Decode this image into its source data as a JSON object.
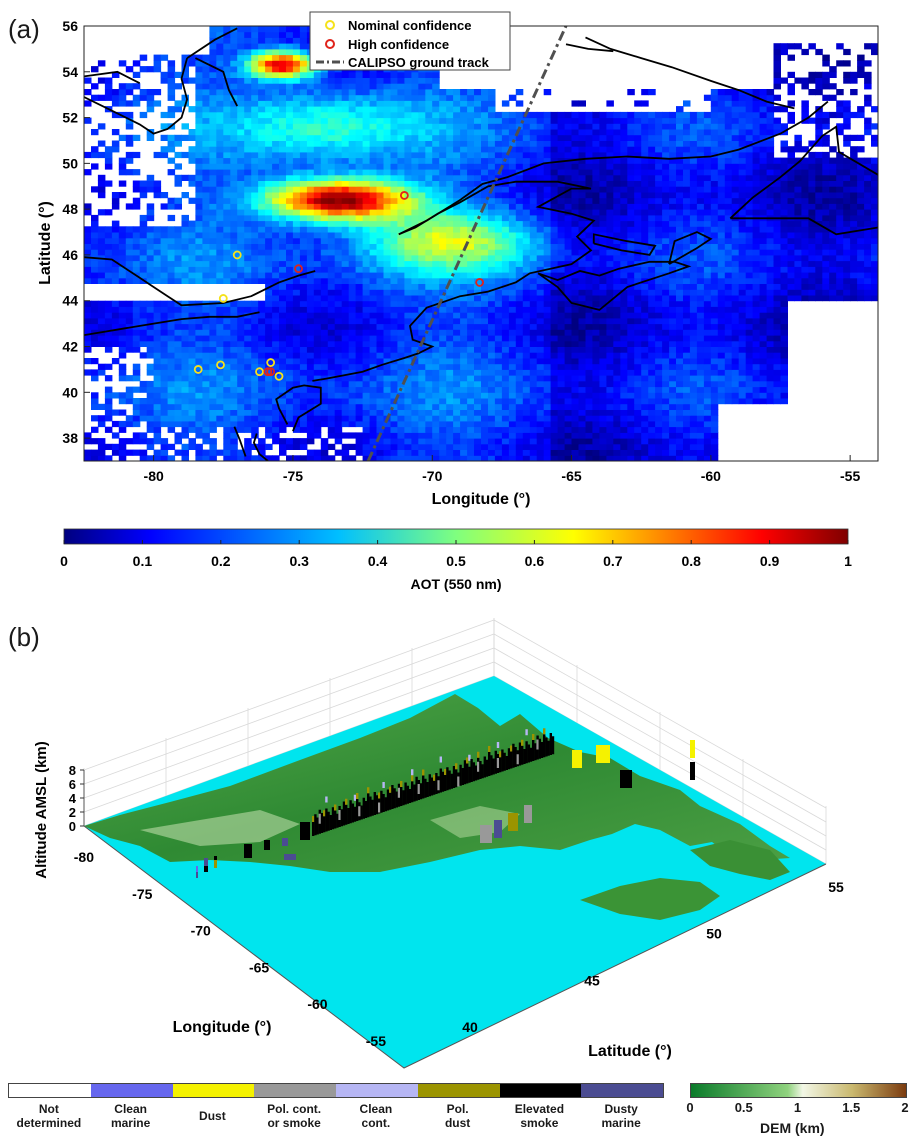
{
  "panel_a": {
    "label": "(a)",
    "legend": {
      "nominal": "Nominal confidence",
      "high": "High confidence",
      "track": "CALIPSO ground track"
    },
    "colors": {
      "nominal": "#f5e21a",
      "high": "#e0231b",
      "track": "#505050",
      "coast": "#000000"
    }
  },
  "panel_b": {
    "label": "(b)",
    "z_axis_label": "Altitude AMSL (km)",
    "x_axis_label": "Longitude (°)",
    "y_axis_label": "Latitude (°)",
    "z_ticks": [
      "8",
      "6",
      "4",
      "2",
      "0"
    ],
    "lon_ticks": [
      "-80",
      "-75",
      "-70",
      "-65",
      "-60",
      "-55"
    ],
    "lat_ticks": [
      "40",
      "45",
      "50",
      "55"
    ],
    "colors": {
      "ocean": "#00e5ee",
      "land": "#3f9a3a"
    }
  },
  "aerosol_legend": {
    "classes": [
      {
        "label": "Not\ndetermined",
        "color": "#ffffff"
      },
      {
        "label": "Clean\nmarine",
        "color": "#6667ee"
      },
      {
        "label": "Dust",
        "color": "#f5f200"
      },
      {
        "label": "Pol. cont.\nor smoke",
        "color": "#999999"
      },
      {
        "label": "Clean\ncont.",
        "color": "#b6b6f4"
      },
      {
        "label": "Pol.\ndust",
        "color": "#9b9400"
      },
      {
        "label": "Elevated\nsmoke",
        "color": "#000000"
      },
      {
        "label": "Dusty\nmarine",
        "color": "#4b4c92"
      }
    ]
  },
  "dem_colorbar": {
    "label": "DEM (km)",
    "ticks": [
      "0",
      "0.5",
      "1",
      "1.5",
      "2"
    ],
    "colors": [
      "#0a7a2a",
      "#8fd27e",
      "#f2f7e6",
      "#c9b86e",
      "#7b3b0f"
    ]
  },
  "chart_data": [
    {
      "type": "heatmap",
      "title": "",
      "xlabel": "Longitude (°)",
      "ylabel": "Latitude (°)",
      "xlim": [
        -82.5,
        -54
      ],
      "ylim": [
        37,
        56
      ],
      "x_ticks": [
        -80,
        -75,
        -70,
        -65,
        -60,
        -55
      ],
      "y_ticks": [
        38,
        40,
        42,
        44,
        46,
        48,
        50,
        52,
        54,
        56
      ],
      "colorbar": {
        "label": "AOT (550 nm)",
        "range": [
          0,
          1
        ],
        "ticks": [
          "0",
          "0.1",
          "0.2",
          "0.3",
          "0.4",
          "0.5",
          "0.6",
          "0.7",
          "0.8",
          "0.9",
          "1"
        ],
        "colormap": "jet"
      },
      "fire_points": {
        "nominal": [
          [
            -77.5,
            44.1
          ],
          [
            -77.0,
            46.0
          ],
          [
            -78.4,
            41.0
          ],
          [
            -77.6,
            41.2
          ],
          [
            -76.2,
            40.9
          ],
          [
            -75.8,
            41.3
          ],
          [
            -75.5,
            40.7
          ]
        ],
        "high": [
          [
            -74.8,
            45.4
          ],
          [
            -71.0,
            48.6
          ],
          [
            -68.3,
            44.8
          ],
          [
            -75.9,
            40.9
          ],
          [
            -75.8,
            40.9
          ]
        ]
      },
      "calipso_track": [
        [
          -72.3,
          37.0
        ],
        [
          -65.2,
          56.0
        ]
      ],
      "smoke_plume_high_aot": [
        [
          -76,
          48.3
        ],
        [
          -73,
          48.9
        ],
        [
          -71,
          47.6
        ]
      ]
    }
  ]
}
